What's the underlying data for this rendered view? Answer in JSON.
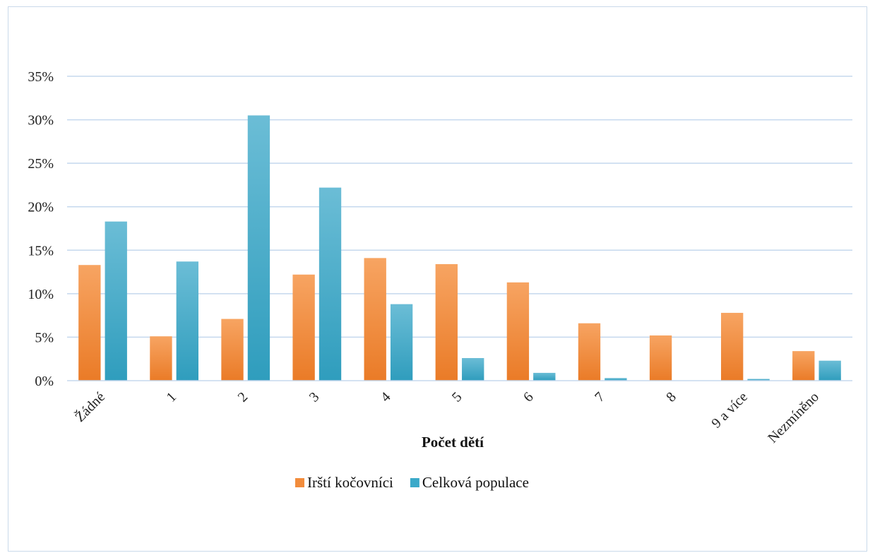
{
  "chart_data": {
    "type": "bar",
    "title": "",
    "xlabel": "Počet dětí",
    "ylabel": "",
    "ylim": [
      0,
      0.35
    ],
    "yticks": [
      "0%",
      "5%",
      "10%",
      "15%",
      "20%",
      "25%",
      "30%",
      "35%"
    ],
    "grid": true,
    "legend_position": "bottom",
    "categories": [
      "Žádné",
      "1",
      "2",
      "3",
      "4",
      "5",
      "6",
      "7",
      "8",
      "9 a více",
      "Nezmíněno"
    ],
    "series": [
      {
        "name": "Irští kočovníci",
        "color": "#f28c3c",
        "values": [
          0.133,
          0.051,
          0.071,
          0.122,
          0.141,
          0.134,
          0.113,
          0.066,
          0.052,
          0.078,
          0.034
        ]
      },
      {
        "name": "Celková populace",
        "color": "#3aa9c9",
        "values": [
          0.183,
          0.137,
          0.305,
          0.222,
          0.088,
          0.026,
          0.009,
          0.003,
          0.0,
          0.002,
          0.023
        ]
      }
    ]
  }
}
